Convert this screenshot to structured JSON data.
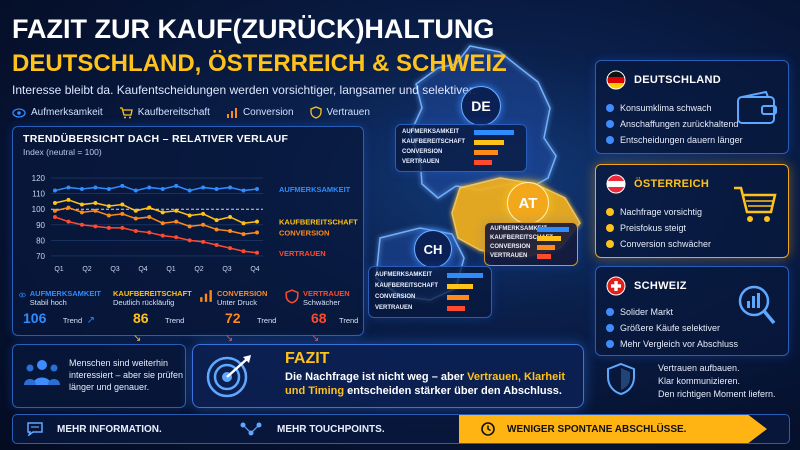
{
  "header": {
    "title_line1": "FAZIT ZUR KAUF(ZURÜCK)HALTUNG",
    "title_line2": "DEUTSCHLAND, ÖSTERREICH & SCHWEIZ",
    "subtitle": "Interesse bleibt da. Kaufentscheidungen werden vorsichtiger, langsamer und selektiver."
  },
  "legend": [
    {
      "label": "Aufmerksamkeit",
      "icon": "eye-icon"
    },
    {
      "label": "Kaufbereitschaft",
      "icon": "cart-icon"
    },
    {
      "label": "Conversion",
      "icon": "bar-chart-icon"
    },
    {
      "label": "Vertrauen",
      "icon": "shield-icon"
    }
  ],
  "colors": {
    "blue": "#2f8cff",
    "yellow": "#ffc21a",
    "orange": "#ff8a1a",
    "red": "#ff4a2e"
  },
  "chart": {
    "title": "TRENDÜBERSICHT DACH – RELATIVER VERLAUF",
    "subtitle": "Index (neutral = 100)"
  },
  "chart_data": {
    "type": "line",
    "title": "TRENDÜBERSICHT DACH – RELATIVER VERLAUF",
    "subtitle": "Index (neutral = 100)",
    "x_tick_labels": [
      "Q1",
      "Q2",
      "Q3",
      "Q4",
      "Q1",
      "Q2",
      "Q3",
      "Q4"
    ],
    "y_ticks": [
      70,
      80,
      90,
      100,
      110,
      120
    ],
    "ylim": [
      68,
      122
    ],
    "reference_line": 100,
    "series": [
      {
        "name": "AUFMERKSAMKEIT",
        "color": "#2f8cff",
        "values": [
          112,
          114,
          113,
          114,
          113,
          115,
          112,
          114,
          113,
          115,
          112,
          114,
          113,
          114,
          112,
          113
        ]
      },
      {
        "name": "KAUFBEREITSCHAFT",
        "color": "#ffc21a",
        "values": [
          104,
          106,
          103,
          104,
          102,
          103,
          99,
          101,
          98,
          99,
          96,
          97,
          93,
          95,
          91,
          92
        ]
      },
      {
        "name": "CONVERSION",
        "color": "#ff8a1a",
        "values": [
          99,
          101,
          98,
          99,
          96,
          97,
          94,
          95,
          91,
          92,
          89,
          90,
          87,
          86,
          84,
          85
        ]
      },
      {
        "name": "VERTRAUEN",
        "color": "#ff4a2e",
        "values": [
          95,
          92,
          90,
          89,
          88,
          88,
          86,
          85,
          83,
          82,
          80,
          79,
          77,
          75,
          73,
          72
        ]
      }
    ]
  },
  "kpis": [
    {
      "name": "AUFMERKSAMKEIT",
      "desc": "Stabil hoch",
      "value": "106",
      "trend_label": "Trend",
      "trend": "↗",
      "color": "#2f8cff",
      "icon": "eye-icon"
    },
    {
      "name": "KAUFBEREITSCHAFT",
      "desc": "Deutlich rückläufig",
      "value": "86",
      "trend_label": "Trend",
      "trend": "↘",
      "color": "#ffc21a",
      "icon": "cart-icon"
    },
    {
      "name": "CONVERSION",
      "desc": "Unter Druck",
      "value": "72",
      "trend_label": "Trend",
      "trend": "↘",
      "color": "#ff8a1a",
      "icon": "bar-chart-icon"
    },
    {
      "name": "VERTRAUEN",
      "desc": "Schwächer",
      "value": "68",
      "trend_label": "Trend",
      "trend": "↘",
      "color": "#ff4a2e",
      "icon": "shield-icon"
    }
  ],
  "map": {
    "metric_labels": [
      "AUFMERKSAMKEIT",
      "KAUFBEREITSCHAFT",
      "CONVERSION",
      "VERTRAUEN"
    ],
    "regions": [
      {
        "code": "DE",
        "bars": [
          0.85,
          0.65,
          0.5,
          0.4
        ]
      },
      {
        "code": "AT",
        "bars": [
          0.8,
          0.6,
          0.45,
          0.35
        ]
      },
      {
        "code": "CH",
        "bars": [
          0.85,
          0.6,
          0.5,
          0.45
        ]
      }
    ]
  },
  "countries": [
    {
      "name": "DEUTSCHLAND",
      "items": [
        "Konsumklima schwach",
        "Anschaffungen zurückhaltend",
        "Entscheidungen dauern länger"
      ],
      "icon": "wallet-icon"
    },
    {
      "name": "ÖSTERREICH",
      "items": [
        "Nachfrage vorsichtig",
        "Preisfokus steigt",
        "Conversion schwächer"
      ],
      "icon": "cart-icon"
    },
    {
      "name": "SCHWEIZ",
      "items": [
        "Solider Markt",
        "Größere Käufe selektiver",
        "Mehr Vergleich vor Abschluss"
      ],
      "icon": "magnifier-chart-icon"
    }
  ],
  "people_note": {
    "text_line1": "Menschen sind weiterhin",
    "text_line2": "interessiert – aber sie prüfen",
    "text_line3": "länger und genauer."
  },
  "fazit": {
    "title": "FAZIT",
    "part1": "Die Nachfrage ist nicht weg – aber ",
    "highlight1": "Vertrauen, Klarheit",
    "part2": "und Timing",
    "part3": " entscheiden stärker über den Abschluss."
  },
  "right_note": {
    "line1": "Vertrauen aufbauen.",
    "line2": "Klar kommunizieren.",
    "line3": "Den richtigen Moment liefern."
  },
  "bottom": [
    {
      "label": "MEHR INFORMATION.",
      "icon": "chat-icon"
    },
    {
      "label": "MEHR TOUCHPOINTS.",
      "icon": "network-icon"
    },
    {
      "label": "WENIGER SPONTANE ABSCHLÜSSE.",
      "icon": "clock-icon"
    }
  ]
}
